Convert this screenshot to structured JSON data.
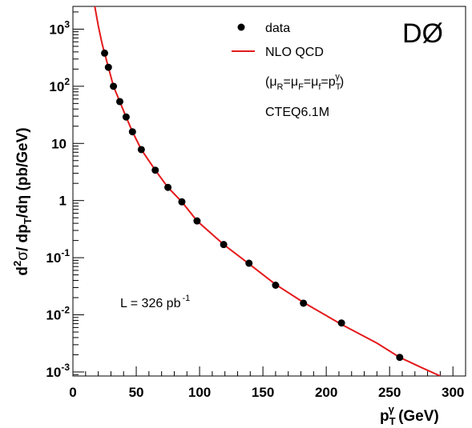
{
  "chart_data": {
    "type": "scatter",
    "title": "",
    "experiment_label": "DØ",
    "xlabel": {
      "main": "p",
      "sub": "T",
      "sup": "γ",
      "unit": " (GeV)"
    },
    "ylabel": {
      "d": "d",
      "sup2": "2",
      "sigma": "σ",
      "slash": "/ dp",
      "subT": "T",
      "rest": "/dη (pb/GeV)"
    },
    "xlim": [
      0,
      310
    ],
    "ylim": [
      0.00085,
      2500
    ],
    "log_y": true,
    "grid": false,
    "x_ticks": [
      {
        "value": 0,
        "label": "0"
      },
      {
        "value": 50,
        "label": "50"
      },
      {
        "value": 100,
        "label": "100"
      },
      {
        "value": 150,
        "label": "150"
      },
      {
        "value": 200,
        "label": "200"
      },
      {
        "value": 250,
        "label": "250"
      },
      {
        "value": 300,
        "label": "300"
      }
    ],
    "y_ticks": [
      {
        "value": 0.001,
        "base": "10",
        "exp": "-3"
      },
      {
        "value": 0.01,
        "base": "10",
        "exp": "-2"
      },
      {
        "value": 0.1,
        "base": "10",
        "exp": "-1"
      },
      {
        "value": 1,
        "base": "1",
        "exp": ""
      },
      {
        "value": 10,
        "base": "10",
        "exp": ""
      },
      {
        "value": 100,
        "base": "10",
        "exp": "2"
      },
      {
        "value": 1000,
        "base": "10",
        "exp": "3"
      }
    ],
    "legend": {
      "placement": "top-right",
      "entries": [
        {
          "label": "data",
          "kind": "marker"
        },
        {
          "label": "NLO QCD",
          "kind": "line"
        }
      ],
      "notes": {
        "scale": {
          "open": "(μ",
          "subR": "R",
          "eq1": "=μ",
          "subF": "F",
          "eq2": "=μ",
          "subf": "f",
          "eq3": "=p",
          "subT": "T",
          "supG": "γ",
          "close": ")"
        },
        "pdf": "CTEQ6.1M"
      }
    },
    "annotations": {
      "luminosity": {
        "text": "L = 326 pb",
        "sup": "-1"
      }
    },
    "series": [
      {
        "name": "data",
        "kind": "points",
        "color": "#000000",
        "x": [
          25,
          28,
          32,
          37,
          42,
          47,
          54,
          65,
          75,
          86,
          98,
          119,
          139,
          160,
          182,
          212,
          258
        ],
        "y": [
          380,
          215,
          100,
          54,
          29,
          16,
          7.8,
          3.4,
          1.7,
          0.95,
          0.44,
          0.17,
          0.08,
          0.033,
          0.016,
          0.0072,
          0.0018
        ]
      },
      {
        "name": "NLO QCD",
        "kind": "line",
        "color": "#e41a1c",
        "x": [
          17,
          20,
          23,
          25,
          28,
          32,
          37,
          42,
          47,
          54,
          65,
          75,
          86,
          98,
          119,
          139,
          160,
          182,
          212,
          240,
          258,
          275,
          290
        ],
        "y": [
          2700,
          1150,
          560,
          380,
          215,
          100,
          54,
          29,
          16,
          7.8,
          3.4,
          1.7,
          0.95,
          0.44,
          0.17,
          0.078,
          0.034,
          0.0165,
          0.0068,
          0.0032,
          0.0018,
          0.0012,
          0.00085
        ]
      }
    ]
  }
}
